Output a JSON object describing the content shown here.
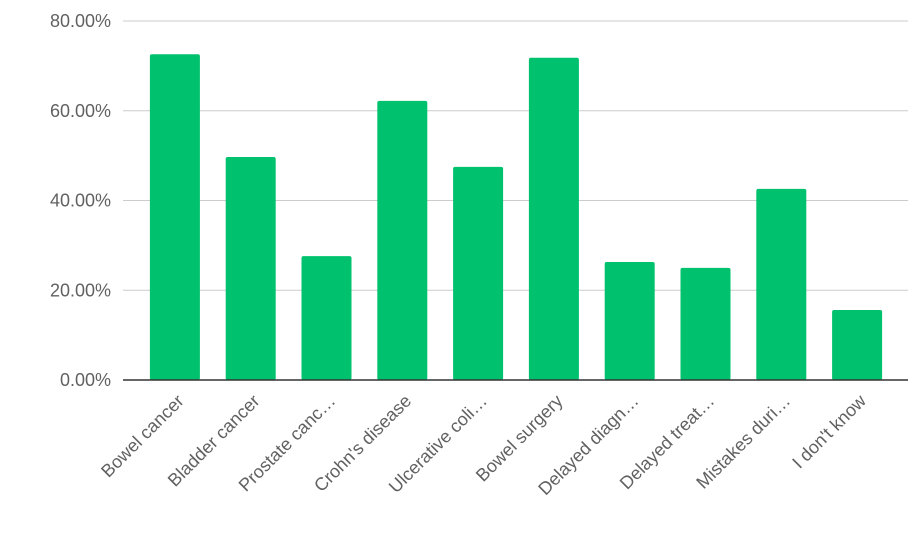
{
  "chart_data": {
    "type": "bar",
    "categories": [
      "Bowel cancer",
      "Bladder cancer",
      "Prostate canc…",
      "Crohn's disease",
      "Ulcerative coli…",
      "Bowel surgery",
      "Delayed diagn…",
      "Delayed treat…",
      "Mistakes duri…",
      "I don't know"
    ],
    "values": [
      72.6,
      49.7,
      27.6,
      62.2,
      47.5,
      71.8,
      26.3,
      25.0,
      42.6,
      15.6
    ],
    "color": "#00c16e",
    "ylim": [
      0,
      80
    ],
    "yticks": [
      {
        "value": 0,
        "label": "0.00%"
      },
      {
        "value": 20,
        "label": "20.00%"
      },
      {
        "value": 40,
        "label": "40.00%"
      },
      {
        "value": 60,
        "label": "60.00%"
      },
      {
        "value": 80,
        "label": "80.00%"
      }
    ],
    "grid": true
  }
}
